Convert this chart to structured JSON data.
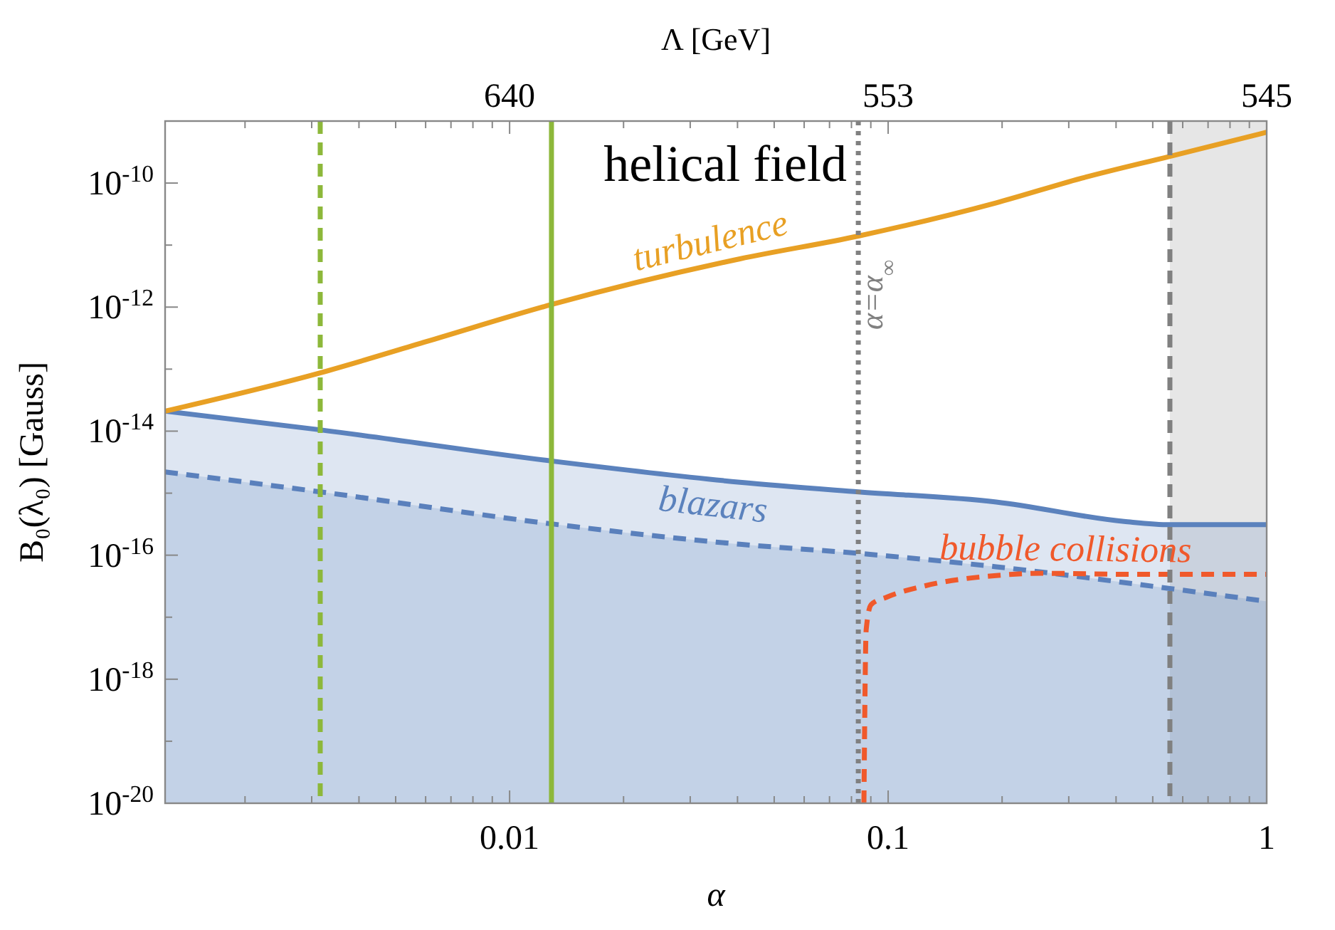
{
  "chart_data": {
    "type": "line",
    "xlabel": "α",
    "ylabel": "B₀(λ₀) [Gauss]",
    "x2label": "Λ [GeV]",
    "log": "xy",
    "grid": false,
    "xlim": [
      0.00123,
      1
    ],
    "ylim": [
      1e-20,
      1e-09
    ],
    "xticks": [
      {
        "value": 0.002,
        "label": null
      },
      {
        "value": 0.003,
        "label": null
      },
      {
        "value": 0.004,
        "label": null
      },
      {
        "value": 0.005,
        "label": null
      },
      {
        "value": 0.006,
        "label": null
      },
      {
        "value": 0.007,
        "label": null
      },
      {
        "value": 0.008,
        "label": null
      },
      {
        "value": 0.009,
        "label": null
      },
      0.01,
      {
        "value": 0.02,
        "label": null
      },
      {
        "value": 0.03,
        "label": null
      },
      {
        "value": 0.04,
        "label": null
      },
      {
        "value": 0.05,
        "label": null
      },
      {
        "value": 0.06,
        "label": null
      },
      {
        "value": 0.07,
        "label": null
      },
      {
        "value": 0.08,
        "label": null
      },
      {
        "value": 0.09,
        "label": null
      },
      0.1,
      {
        "value": 0.2,
        "label": null
      },
      {
        "value": 0.3,
        "label": null
      },
      {
        "value": 0.4,
        "label": null
      },
      {
        "value": 0.5,
        "label": null
      },
      {
        "value": 0.6,
        "label": null
      },
      {
        "value": 0.7,
        "label": null
      },
      {
        "value": 0.8,
        "label": null
      },
      {
        "value": 0.9,
        "label": null
      },
      1
    ],
    "yticks": [
      {
        "value": 1e-20,
        "label": "10$^{-20}$"
      },
      {
        "value": 1e-19,
        "label": null
      },
      {
        "value": 1e-18,
        "label": "10$^{-18}$"
      },
      {
        "value": 1e-17,
        "label": null
      },
      {
        "value": 1e-16,
        "label": "10$^{-16}$"
      },
      {
        "value": 1e-15,
        "label": null
      },
      {
        "value": 1e-14,
        "label": "10$^{-14}$"
      },
      {
        "value": 1e-13,
        "label": null
      },
      {
        "value": 1e-12,
        "label": "10$^{-12}$"
      },
      {
        "value": 1e-11,
        "label": null
      },
      {
        "value": 1e-10,
        "label": "10$^{-10}$"
      }
    ],
    "bands": [
      {
        "axis": "x",
        "from": 0.555,
        "to": 1,
        "color": "#e6e6e6"
      }
    ],
    "ref_lines": [
      {
        "axis": "x",
        "value": 0.00316,
        "color": "#8db83a",
        "line_style": "dashed"
      },
      {
        "axis": "x",
        "value": 0.0129,
        "color": "#8db83a",
        "line_style": "solid"
      },
      {
        "axis": "x",
        "value": 0.0834,
        "color": "#808080",
        "line_style": "dotted",
        "label": "α=α$_{∞}$"
      },
      {
        "axis": "x",
        "value": 0.555,
        "color": "#808080",
        "line_style": "dashed"
      }
    ],
    "series": [
      {
        "name": "blazars",
        "type": "area",
        "color": "#5b82bd",
        "line_style": "solid",
        "x": [
          0.00123,
          0.00316,
          0.0129,
          0.0406,
          0.0834,
          0.193,
          0.42,
          0.555,
          1
        ],
        "values": [
          2.1e-14,
          1.05e-14,
          3.3e-15,
          1.5e-15,
          1.05e-15,
          7.2e-16,
          3.5e-16,
          3.1e-16,
          3.1e-16
        ]
      },
      {
        "type": "area",
        "color": "#5a80bc",
        "line_style": "dashed",
        "x": [
          0.00123,
          0.00316,
          0.0129,
          0.0406,
          0.0834,
          0.193,
          0.555,
          1
        ],
        "values": [
          2.2e-15,
          1.05e-15,
          3.2e-16,
          1.5e-16,
          1.07e-16,
          6.5e-17,
          2.9e-17,
          1.8e-17
        ]
      },
      {
        "name": "turbulence",
        "type": "line",
        "color": "#e8a024",
        "line_style": "solid",
        "x": [
          0.00123,
          0.00316,
          0.00605,
          0.0129,
          0.0406,
          0.0834,
          0.193,
          0.325,
          0.555,
          1
        ],
        "values": [
          2.1e-14,
          8.7e-14,
          2.8e-13,
          1.1e-12,
          6e-12,
          1.4e-11,
          4.8e-11,
          1.2e-10,
          2.7e-10,
          6.6e-10
        ]
      },
      {
        "name": "bubble collisions",
        "type": "line",
        "color": "#f0592b",
        "line_style": "dashed",
        "x": [
          0.0863,
          0.0875,
          0.0902,
          0.099,
          0.125,
          0.193,
          0.257,
          0.459,
          1
        ],
        "values": [
          1e-20,
          6.3e-18,
          1.6e-17,
          2.1e-17,
          3.2e-17,
          4.7e-17,
          5.1e-17,
          4.9e-17,
          4.9e-17
        ]
      }
    ],
    "annotations": [
      "helical field",
      "640",
      "553",
      "545"
    ]
  }
}
